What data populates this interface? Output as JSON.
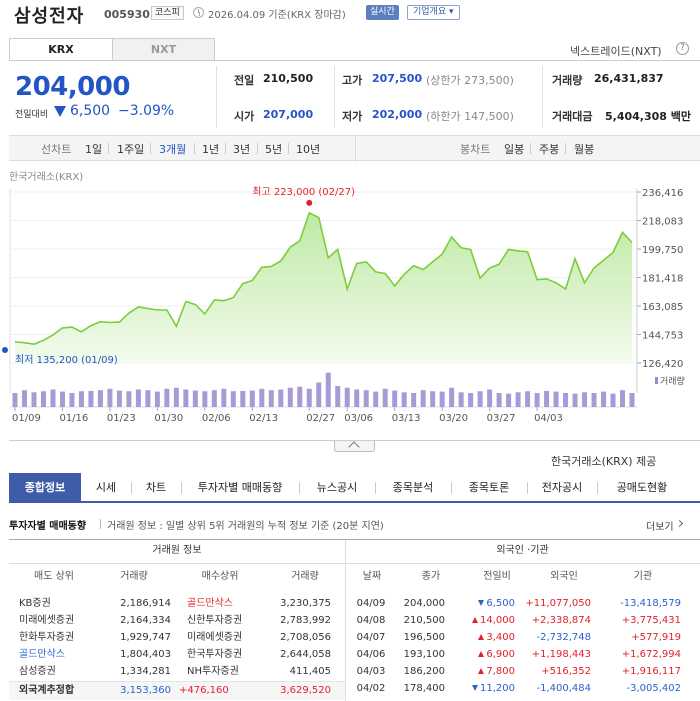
{
  "header": {
    "stock_name": "삼성전자",
    "stock_code": "005930",
    "market_badge": "코스피",
    "datetime": "2026.04.09  기준(KRX 장마감)",
    "realtime_label": "실시간",
    "overview_label": "기업개요 ▾"
  },
  "exchange_tabs": [
    "KRX",
    "NXT"
  ],
  "next_rate": "넥스트레이드(NXT)",
  "quote": {
    "price": "204,000",
    "change_label": "전일대비",
    "change_value": "6,500",
    "change_pct": "−3.09%",
    "prev_close_label": "전일",
    "prev_close": "210,500",
    "high_label": "고가",
    "high": "207,500",
    "upper_limit": "(상한가 273,500)",
    "volume_label": "거래량",
    "volume": "26,431,837",
    "open_label": "시가",
    "open": "207,000",
    "low_label": "저가",
    "low": "202,000",
    "lower_limit": "(하한가 147,500)",
    "amount_label": "거래대금",
    "amount": "5,404,308 백만"
  },
  "period_bar": {
    "line_label": "선차트",
    "line_items": [
      "1일",
      "1주일",
      "3개월",
      "1년",
      "3년",
      "5년",
      "10년"
    ],
    "selected": "3개월",
    "candle_label": "봉차트",
    "candle_items": [
      "일봉",
      "주봉",
      "월봉"
    ]
  },
  "chart_source": "한국거래소(KRX)",
  "chart_data": {
    "type": "area",
    "y_ticks": [
      "236,416",
      "218,083",
      "199,750",
      "181,418",
      "163,085",
      "144,753",
      "126,420"
    ],
    "ylim": [
      126420,
      236416
    ],
    "x_tick_labels": [
      "01/09",
      "01/16",
      "01/23",
      "01/30",
      "02/06",
      "02/13",
      "02/27",
      "03/06",
      "03/13",
      "03/20",
      "03/27",
      "04/03"
    ],
    "values": [
      140000,
      139500,
      138500,
      141000,
      144500,
      149000,
      149500,
      146500,
      150500,
      153000,
      152500,
      152700,
      158500,
      162500,
      161500,
      160500,
      160500,
      150000,
      166000,
      164000,
      158000,
      167000,
      166500,
      168500,
      177500,
      179500,
      188000,
      188500,
      192000,
      201000,
      205000,
      223000,
      220000,
      194000,
      199500,
      174000,
      190500,
      191500,
      185000,
      184000,
      176000,
      183500,
      189000,
      186500,
      191500,
      196500,
      207500,
      200500,
      199500,
      181000,
      187500,
      190000,
      199500,
      198500,
      198000,
      180000,
      180500,
      178000,
      174000,
      193500,
      178000,
      187500,
      192500,
      197500,
      210500,
      204000
    ],
    "volumes": [
      40,
      48,
      42,
      45,
      50,
      44,
      40,
      45,
      46,
      48,
      52,
      47,
      45,
      50,
      48,
      44,
      52,
      55,
      50,
      47,
      45,
      48,
      52,
      45,
      46,
      47,
      52,
      48,
      50,
      55,
      58,
      52,
      70,
      98,
      60,
      55,
      50,
      48,
      44,
      52,
      47,
      42,
      40,
      48,
      45,
      44,
      55,
      42,
      40,
      45,
      50,
      40,
      38,
      42,
      45,
      40,
      46,
      44,
      40,
      38,
      42,
      40,
      44,
      38,
      48,
      40
    ],
    "high_label": "최고 223,000 (02/27)",
    "low_label": "최저 135,200 (01/09)",
    "volume_label": "거래량"
  },
  "provider_text": "한국거래소(KRX) 제공",
  "main_tabs": [
    "종합정보",
    "시세",
    "차트",
    "투자자별 매매동향",
    "뉴스공시",
    "종목분석",
    "종목토론",
    "전자공시",
    "공매도현황"
  ],
  "section": {
    "title": "투자자별 매매동향",
    "desc": "거래원 정보 : 일별 상위 5위 거래원의 누적 정보 기준 (20분 지연)",
    "more": "더보기"
  },
  "broker_table": {
    "group_header": "거래원 정보",
    "headers": [
      "매도 상위",
      "거래량",
      "매수상위",
      "거래량"
    ],
    "rows": [
      {
        "sell": "KB증권",
        "sell_vol": "2,186,914",
        "buy": "골드만삭스",
        "buy_vol": "3,230,375",
        "sell_foreign": false,
        "buy_foreign": true
      },
      {
        "sell": "미래에셋증권",
        "sell_vol": "2,164,334",
        "buy": "신한투자증권",
        "buy_vol": "2,783,992",
        "sell_foreign": false,
        "buy_foreign": false
      },
      {
        "sell": "한화투자증권",
        "sell_vol": "1,929,747",
        "buy": "미래에셋증권",
        "buy_vol": "2,708,056",
        "sell_foreign": false,
        "buy_foreign": false
      },
      {
        "sell": "골드만삭스",
        "sell_vol": "1,804,403",
        "buy": "한국투자증권",
        "buy_vol": "2,644,058",
        "sell_foreign": true,
        "buy_foreign": false
      },
      {
        "sell": "삼성증권",
        "sell_vol": "1,334,281",
        "buy": "NH투자증권",
        "buy_vol": "411,405",
        "sell_foreign": false,
        "buy_foreign": false
      }
    ],
    "foreign_total": {
      "label": "외국계추정합",
      "sell_vol": "3,153,360",
      "net": "+476,160",
      "buy_vol": "3,629,520"
    }
  },
  "investor_table": {
    "group_header": "외국인 ·기관",
    "headers": [
      "날짜",
      "종가",
      "전일비",
      "외국인",
      "기관"
    ],
    "rows": [
      {
        "date": "04/09",
        "close": "204,000",
        "dir": "down",
        "change": "6,500",
        "foreign": "+11,077,050",
        "inst": "-13,418,579"
      },
      {
        "date": "04/08",
        "close": "210,500",
        "dir": "up",
        "change": "14,000",
        "foreign": "+2,338,874",
        "inst": "+3,775,431"
      },
      {
        "date": "04/07",
        "close": "196,500",
        "dir": "up",
        "change": "3,400",
        "foreign": "-2,732,748",
        "inst": "+577,919"
      },
      {
        "date": "04/06",
        "close": "193,100",
        "dir": "up",
        "change": "6,900",
        "foreign": "+1,198,443",
        "inst": "+1,672,994"
      },
      {
        "date": "04/03",
        "close": "186,200",
        "dir": "up",
        "change": "7,800",
        "foreign": "+516,352",
        "inst": "+1,916,117"
      },
      {
        "date": "04/02",
        "close": "178,400",
        "dir": "down",
        "change": "11,200",
        "foreign": "-1,400,484",
        "inst": "-3,005,402"
      }
    ]
  },
  "colors": {
    "accent": "#3f5ca8",
    "price_blue": "#2355c6",
    "up_red": "#e3202a",
    "line_green": "#7ccd3c"
  }
}
